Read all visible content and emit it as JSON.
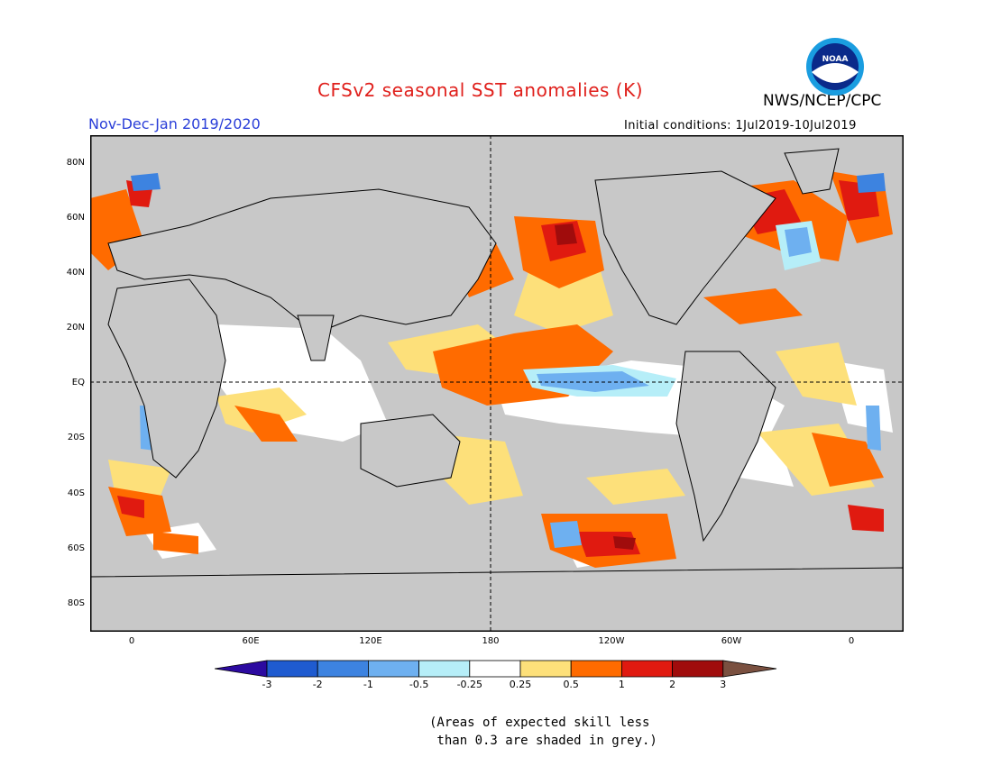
{
  "header": {
    "title": "CFSv2 seasonal SST anomalies (K)",
    "agency": "NWS/NCEP/CPC",
    "period": "Nov-Dec-Jan 2019/2020",
    "initial_conditions": "Initial conditions: 1Jul2019-10Jul2019",
    "logo_text": "NOAA"
  },
  "map": {
    "lat_labels": [
      "80N",
      "60N",
      "40N",
      "20N",
      "EQ",
      "20S",
      "40S",
      "60S",
      "80S"
    ],
    "lon_labels": [
      "0",
      "60E",
      "120E",
      "180",
      "120W",
      "60W",
      "0"
    ],
    "colors": {
      "land": "#c8c8c8",
      "ocean_grey": "#c8c8c8"
    }
  },
  "colorbar": {
    "ticks": [
      "-3",
      "-2",
      "-1",
      "-0.5",
      "-0.25",
      "0.25",
      "0.5",
      "1",
      "2",
      "3"
    ],
    "colors": [
      "#2c0aa0",
      "#1f5bd0",
      "#3d83e0",
      "#6eb0f0",
      "#b6eef8",
      "#ffffff",
      "#fde07a",
      "#ff6b00",
      "#e01a10",
      "#a00c0c",
      "#7a5040"
    ]
  },
  "note": {
    "line1": "(Areas of expected skill less",
    "line2": " than 0.3 are shaded in grey.)"
  }
}
